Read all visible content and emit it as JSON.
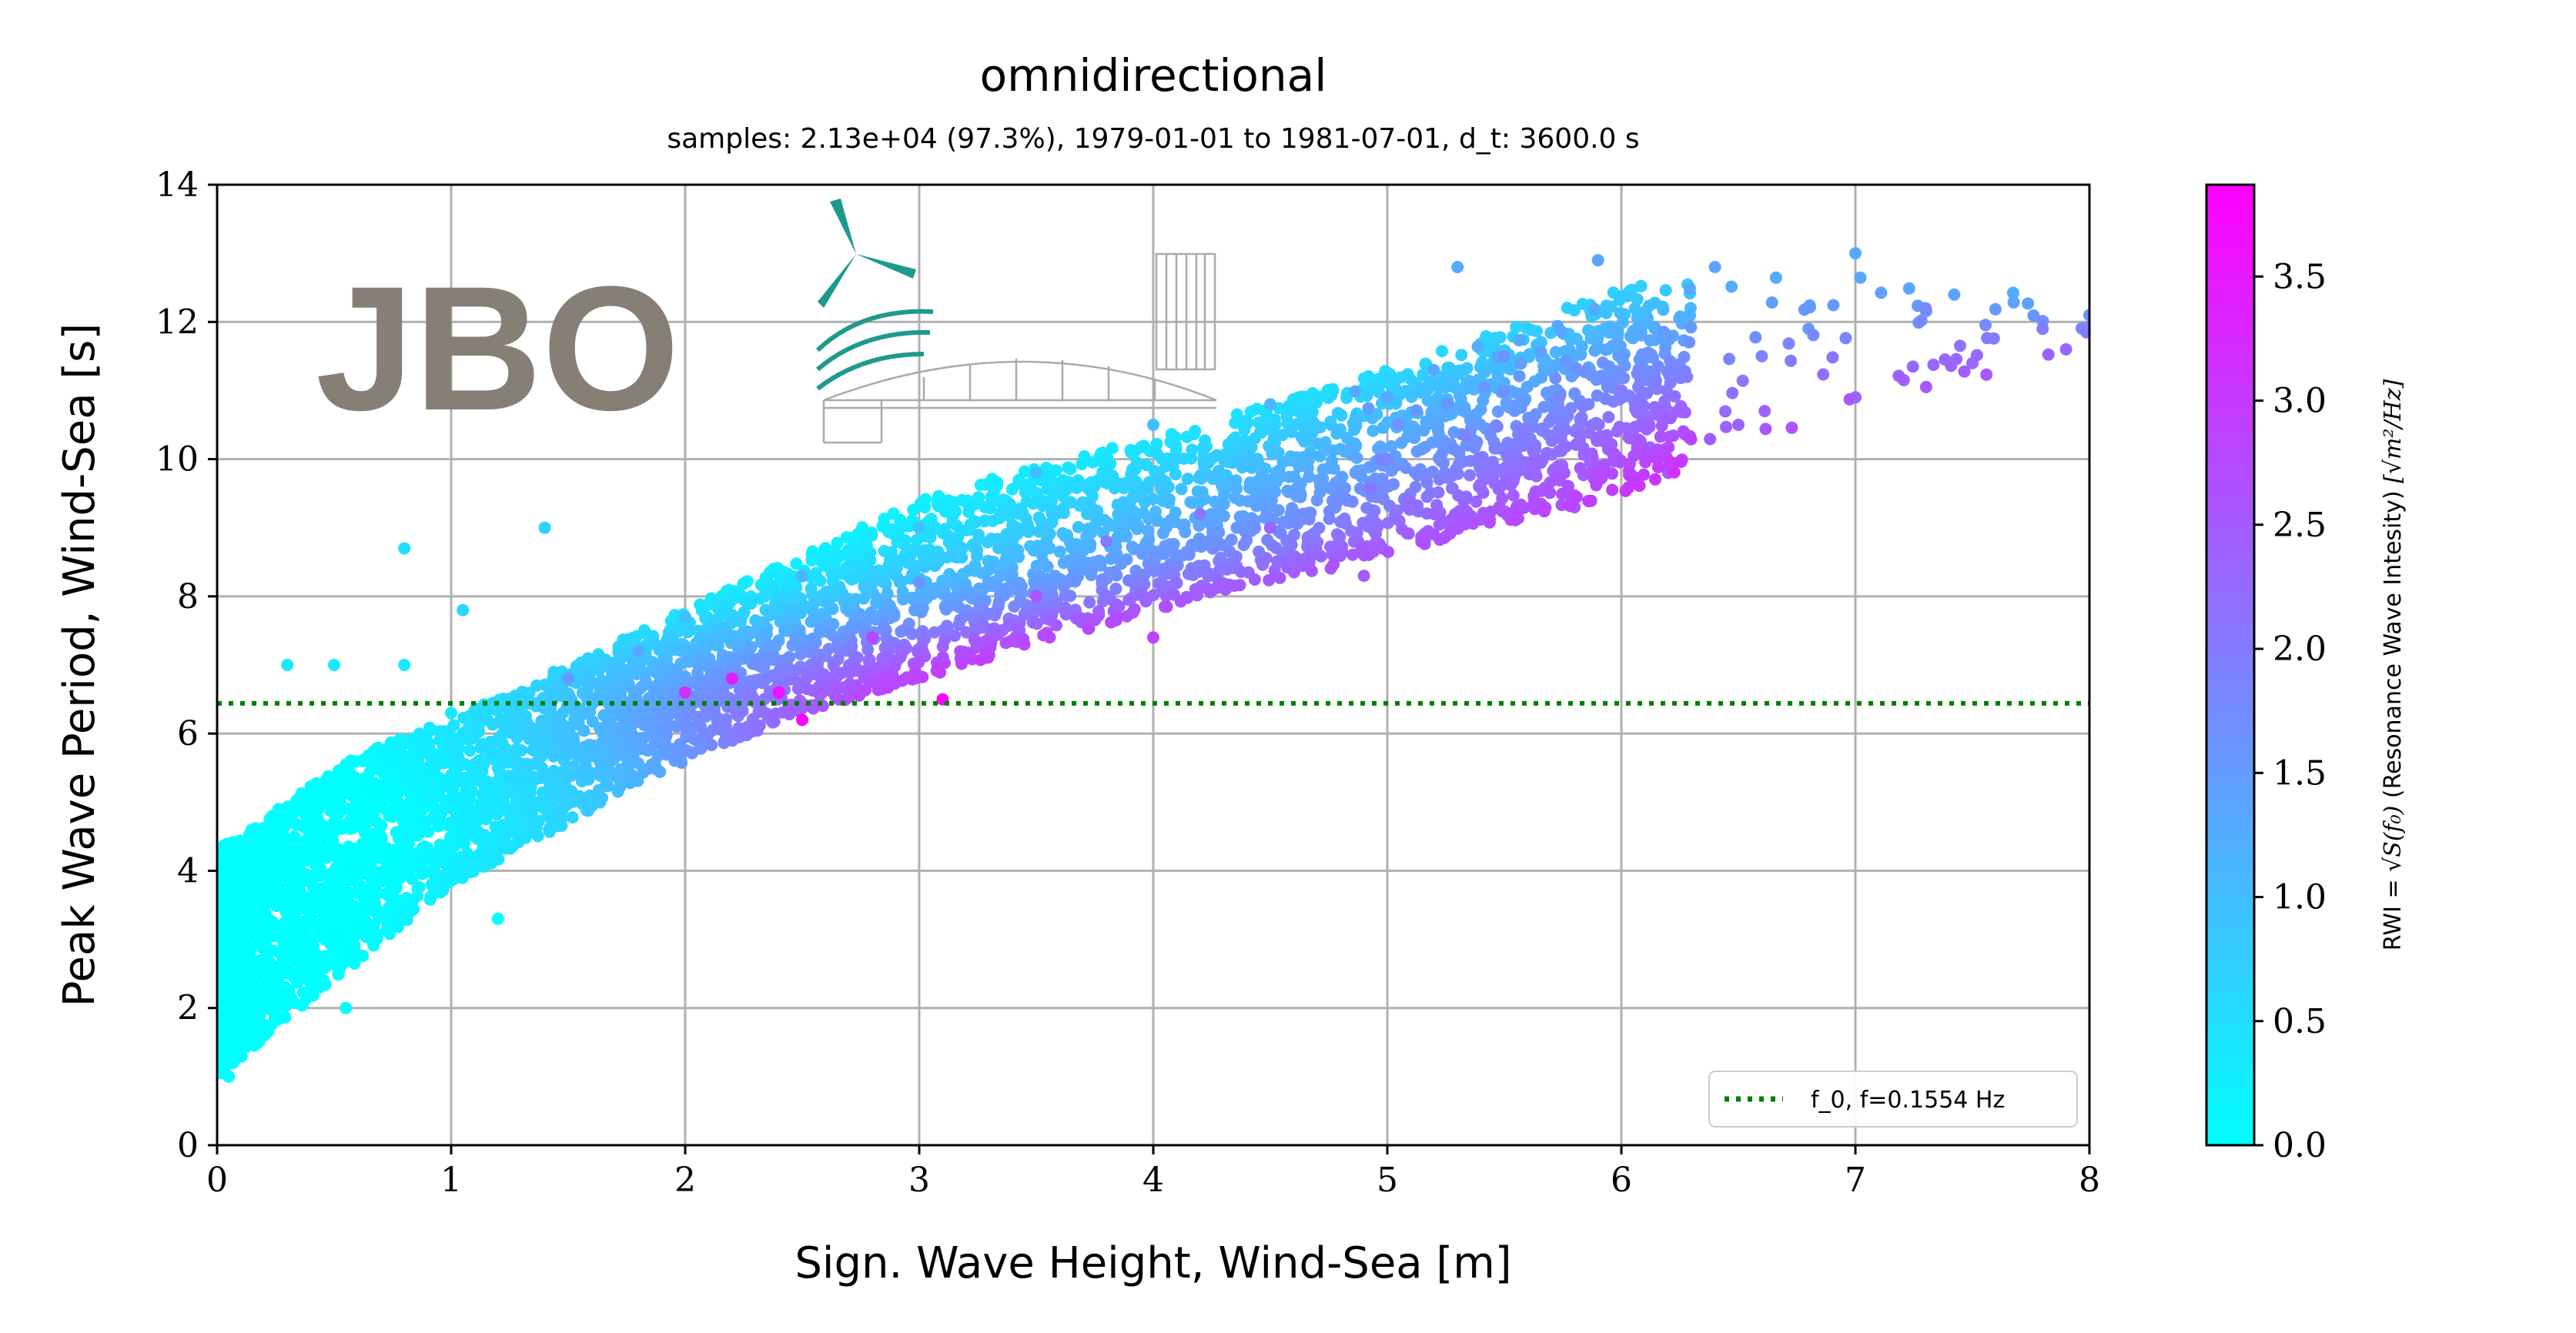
{
  "chart_data": {
    "type": "scatter",
    "title": "omnidirectional",
    "subtitle": "samples: 2.13e+04 (97.3%), 1979-01-01 to 1981-07-01, d_t: 3600.0 s",
    "xlabel": "Sign. Wave Height, Wind-Sea [m]",
    "ylabel": "Peak Wave Period, Wind-Sea [s]",
    "xlim": [
      0,
      8
    ],
    "ylim": [
      0,
      14
    ],
    "xticks": [
      0,
      1,
      2,
      3,
      4,
      5,
      6,
      7,
      8
    ],
    "yticks": [
      0,
      2,
      4,
      6,
      8,
      10,
      12,
      14
    ],
    "grid": true,
    "reference_line": {
      "y": 6.44,
      "style": "dotted",
      "color": "#008000",
      "legend": "f_0, f=0.1554 Hz"
    },
    "legend_position": "lower-right",
    "colorbar": {
      "label": "RWI = √S(f0) (Resonance Wave Intesity) [√m²/Hz]",
      "label_plain": "RWI = ",
      "label_mid": " (Resonance Wave Intesity) ",
      "range": [
        0,
        3.87
      ],
      "ticks": [
        "0.0",
        "0.5",
        "1.0",
        "1.5",
        "2.0",
        "2.5",
        "3.0",
        "3.5"
      ],
      "colormap": [
        "#00ffff",
        "#ff00ff"
      ]
    },
    "point_cloud": {
      "description_count": "2.13e+04",
      "envelope_upper": [
        [
          0.0,
          4.3
        ],
        [
          0.3,
          5.0
        ],
        [
          0.6,
          5.7
        ],
        [
          1.0,
          6.2
        ],
        [
          1.5,
          7.0
        ],
        [
          2.0,
          7.8
        ],
        [
          2.5,
          8.6
        ],
        [
          3.0,
          9.4
        ],
        [
          3.5,
          9.9
        ],
        [
          4.0,
          10.3
        ],
        [
          4.5,
          10.8
        ],
        [
          5.0,
          11.3
        ],
        [
          6.0,
          12.5
        ],
        [
          7.0,
          12.8
        ],
        [
          8.0,
          12.3
        ]
      ],
      "envelope_lower": [
        [
          0.0,
          1.0
        ],
        [
          0.5,
          2.4
        ],
        [
          1.0,
          3.8
        ],
        [
          1.5,
          4.7
        ],
        [
          2.0,
          5.6
        ],
        [
          2.5,
          6.3
        ],
        [
          3.0,
          6.8
        ],
        [
          3.5,
          7.3
        ],
        [
          4.0,
          7.8
        ],
        [
          4.5,
          8.2
        ],
        [
          5.0,
          8.6
        ],
        [
          6.0,
          9.5
        ],
        [
          7.0,
          10.8
        ],
        [
          8.0,
          11.5
        ]
      ],
      "sample_points": [
        [
          0.05,
          1.0,
          0.0
        ],
        [
          0.1,
          1.5,
          0.0
        ],
        [
          0.1,
          3.0,
          0.0
        ],
        [
          0.2,
          2.0,
          0.0
        ],
        [
          0.3,
          2.8,
          0.0
        ],
        [
          0.4,
          3.5,
          0.0
        ],
        [
          0.5,
          3.0,
          0.05
        ],
        [
          0.6,
          4.0,
          0.1
        ],
        [
          0.8,
          4.5,
          0.15
        ],
        [
          1.0,
          5.0,
          0.25
        ],
        [
          1.2,
          5.5,
          0.4
        ],
        [
          1.5,
          6.0,
          0.6
        ],
        [
          1.5,
          6.8,
          1.5
        ],
        [
          1.8,
          7.2,
          1.3
        ],
        [
          2.0,
          6.6,
          3.2
        ],
        [
          2.2,
          6.8,
          3.4
        ],
        [
          2.4,
          6.6,
          3.6
        ],
        [
          2.5,
          6.2,
          3.8
        ],
        [
          2.0,
          7.7,
          1.0
        ],
        [
          2.5,
          8.3,
          1.1
        ],
        [
          2.8,
          7.4,
          2.8
        ],
        [
          3.0,
          8.2,
          1.6
        ],
        [
          3.0,
          9.0,
          0.9
        ],
        [
          3.1,
          6.5,
          3.7
        ],
        [
          3.5,
          9.8,
          1.0
        ],
        [
          3.5,
          8.0,
          2.6
        ],
        [
          3.8,
          8.8,
          2.0
        ],
        [
          4.0,
          7.4,
          2.8
        ],
        [
          4.0,
          10.5,
          1.0
        ],
        [
          4.2,
          9.2,
          2.0
        ],
        [
          4.5,
          10.8,
          1.1
        ],
        [
          4.5,
          9.0,
          2.3
        ],
        [
          4.9,
          8.3,
          2.5
        ],
        [
          5.0,
          10.0,
          1.8
        ],
        [
          5.0,
          10.9,
          1.3
        ],
        [
          5.2,
          9.2,
          2.4
        ],
        [
          5.3,
          12.8,
          1.3
        ],
        [
          5.5,
          11.5,
          1.6
        ],
        [
          5.8,
          9.3,
          2.6
        ],
        [
          5.9,
          12.9,
          1.4
        ],
        [
          6.0,
          11.0,
          2.0
        ],
        [
          6.2,
          9.8,
          2.6
        ],
        [
          6.4,
          12.8,
          1.4
        ],
        [
          6.5,
          10.5,
          2.4
        ],
        [
          6.6,
          11.5,
          1.9
        ],
        [
          6.8,
          11.9,
          1.5
        ],
        [
          7.0,
          10.9,
          2.3
        ],
        [
          7.0,
          13.0,
          1.3
        ],
        [
          7.3,
          12.2,
          1.8
        ],
        [
          7.5,
          11.4,
          2.3
        ],
        [
          7.8,
          11.9,
          2.0
        ],
        [
          7.9,
          11.6,
          2.3
        ],
        [
          8.0,
          12.1,
          1.7
        ],
        [
          0.3,
          7.0,
          0.3
        ],
        [
          0.5,
          7.0,
          0.3
        ],
        [
          0.8,
          8.7,
          0.5
        ],
        [
          1.4,
          9.0,
          0.7
        ],
        [
          1.0,
          6.3,
          0.3
        ],
        [
          0.8,
          7.0,
          0.3
        ],
        [
          1.05,
          7.8,
          0.6
        ],
        [
          1.2,
          3.3,
          0.0
        ],
        [
          0.55,
          2.0,
          0.0
        ]
      ]
    }
  },
  "logo": {
    "text": "JBO"
  }
}
